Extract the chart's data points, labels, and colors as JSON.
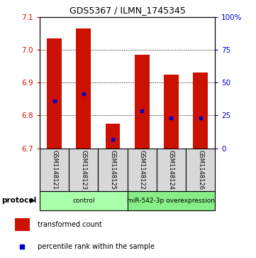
{
  "title": "GDS5367 / ILMN_1745345",
  "samples": [
    "GSM1148121",
    "GSM1148123",
    "GSM1148125",
    "GSM1148122",
    "GSM1148124",
    "GSM1148126"
  ],
  "bar_bottom": 6.7,
  "bar_tops": [
    7.035,
    7.065,
    6.775,
    6.985,
    6.925,
    6.93
  ],
  "blue_markers": [
    6.845,
    6.865,
    6.728,
    6.814,
    6.793,
    6.793
  ],
  "ylim": [
    6.7,
    7.1
  ],
  "yticks": [
    6.7,
    6.8,
    6.9,
    7.0,
    7.1
  ],
  "right_yticks": [
    0,
    25,
    50,
    75,
    100
  ],
  "right_ylabels": [
    "0",
    "25",
    "50",
    "75",
    "100%"
  ],
  "bar_color": "#cc1100",
  "marker_color": "#0000cc",
  "bar_width": 0.5,
  "groups": [
    {
      "label": "control",
      "indices": [
        0,
        1,
        2
      ],
      "color": "#aaffaa"
    },
    {
      "label": "miR-542-3p overexpression",
      "indices": [
        3,
        4,
        5
      ],
      "color": "#88ee88"
    }
  ],
  "protocol_label": "protocol",
  "legend_items": [
    {
      "color": "#cc1100",
      "label": "transformed count"
    },
    {
      "color": "#0000cc",
      "label": "percentile rank within the sample"
    }
  ],
  "axis_color_left": "#cc1100",
  "axis_color_right": "#0000cc",
  "sample_bg_color": "#d8d8d8",
  "fig_width": 3.61,
  "fig_height": 3.63,
  "dpi": 100
}
